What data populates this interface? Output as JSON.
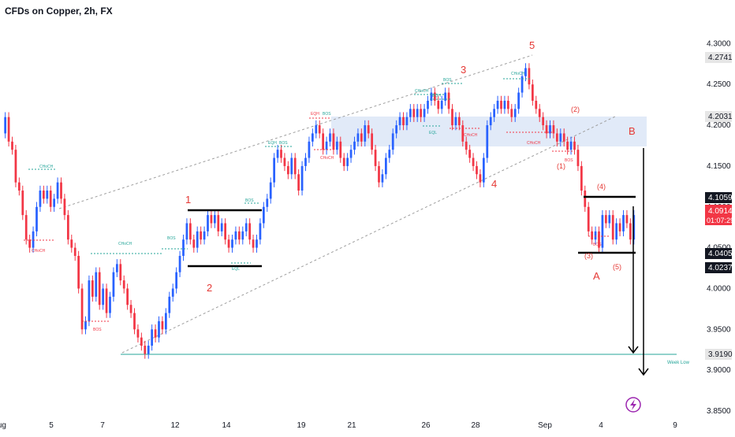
{
  "header": {
    "title": "CFDs on Copper, 2h, FX"
  },
  "colors": {
    "up": "#2962ff",
    "down": "#f23645",
    "bos": "#26a69a",
    "choch": "#2962ff",
    "wave": "#e53935",
    "low": "#26a69a",
    "zone": "#dce6f7"
  },
  "chart_data": {
    "type": "candlestick",
    "title": "CFDs on Copper, 2h, FX",
    "ylim": [
      3.85,
      4.31
    ],
    "y_ticks": [
      "4.3000",
      "4.2500",
      "4.2000",
      "4.1500",
      "4.1000",
      "4.0500",
      "4.0000",
      "3.9500",
      "3.9000",
      "3.8500"
    ],
    "x_ticks": [
      "Aug",
      "5",
      "7",
      "12",
      "14",
      "19",
      "21",
      "26",
      "28",
      "Sep",
      "4",
      "9"
    ],
    "price_tags": {
      "p42741": "4.2741",
      "p42031": "4.2031",
      "p41059": "4.1059",
      "p40914": "4.0914",
      "countdown": "01:07:29",
      "p40405": "4.0405",
      "p40237": "4.0237",
      "p39190": "3.9190"
    },
    "wave_labels": {
      "w1": "1",
      "w2": "2",
      "w3": "3",
      "w4": "4",
      "w5": "5",
      "wA": "A",
      "wB": "B",
      "s1": "(1)",
      "s2": "(2)",
      "s4": "(4)",
      "s5": "(5)",
      "s3": "(3)"
    },
    "annotations": {
      "week_low": "Week Low",
      "bos": "BOS",
      "choch": "CHoCH",
      "eqh": "EQH",
      "eql": "EQL"
    },
    "series": [
      {
        "name": "",
        "values": [
          4.19,
          4.21,
          4.18,
          4.17,
          4.13,
          4.12,
          4.09,
          4.06,
          4.05,
          4.07,
          4.1,
          4.12,
          4.11,
          4.12,
          4.1,
          4.11,
          4.13,
          4.11,
          4.09,
          4.06,
          4.05,
          4.04,
          4.0,
          3.95,
          3.96,
          4.01,
          3.99,
          4.02,
          3.98,
          4.0,
          3.97,
          3.99,
          4.02,
          4.03,
          4.01,
          4.0,
          3.98,
          3.97,
          3.95,
          3.94,
          3.93,
          3.92,
          3.93,
          3.95,
          3.94,
          3.96,
          3.95,
          3.97,
          3.99,
          4.0,
          4.02,
          4.04,
          4.06,
          4.08,
          4.06,
          4.05,
          4.07,
          4.06,
          4.07,
          4.09,
          4.08,
          4.09,
          4.07,
          4.08,
          4.06,
          4.05,
          4.06,
          4.07,
          4.06,
          4.07,
          4.08,
          4.06,
          4.05,
          4.06,
          4.08,
          4.1,
          4.11,
          4.13,
          4.16,
          4.17,
          4.16,
          4.15,
          4.14,
          4.16,
          4.14,
          4.12,
          4.15,
          4.16,
          4.18,
          4.19,
          4.2,
          4.19,
          4.17,
          4.18,
          4.19,
          4.17,
          4.18,
          4.16,
          4.15,
          4.16,
          4.17,
          4.18,
          4.19,
          4.18,
          4.2,
          4.19,
          4.17,
          4.15,
          4.13,
          4.14,
          4.16,
          4.17,
          4.19,
          4.2,
          4.21,
          4.2,
          4.21,
          4.22,
          4.21,
          4.22,
          4.21,
          4.22,
          4.23,
          4.24,
          4.23,
          4.22,
          4.23,
          4.24,
          4.22,
          4.2,
          4.21,
          4.2,
          4.18,
          4.17,
          4.16,
          4.15,
          4.14,
          4.13,
          4.16,
          4.2,
          4.21,
          4.22,
          4.23,
          4.22,
          4.23,
          4.22,
          4.21,
          4.22,
          4.24,
          4.26,
          4.27,
          4.25,
          4.23,
          4.22,
          4.21,
          4.2,
          4.19,
          4.2,
          4.19,
          4.18,
          4.19,
          4.18,
          4.17,
          4.18,
          4.17,
          4.15,
          4.12,
          4.1,
          4.07,
          4.06,
          4.07,
          4.05,
          4.09,
          4.08,
          4.09,
          4.06,
          4.08,
          4.07,
          4.09,
          4.08,
          4.06,
          4.09
        ]
      }
    ]
  }
}
